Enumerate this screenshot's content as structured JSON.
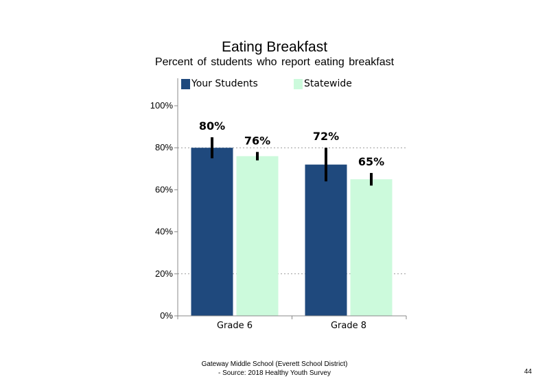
{
  "chart_data": {
    "type": "bar",
    "title": "Eating Breakfast",
    "subtitle": "Percent of students who report eating breakfast",
    "categories": [
      "Grade 6",
      "Grade 8"
    ],
    "series": [
      {
        "name": "Your Students",
        "color": "#1f497d",
        "values": [
          80,
          72
        ],
        "labels": [
          "80%",
          "72%"
        ],
        "error_low": [
          75,
          64
        ],
        "error_high": [
          85,
          80
        ]
      },
      {
        "name": "Statewide",
        "color": "#ccfadc",
        "values": [
          76,
          65
        ],
        "labels": [
          "76%",
          "65%"
        ],
        "error_low": [
          74,
          62
        ],
        "error_high": [
          78,
          68
        ]
      }
    ],
    "ylim": [
      0,
      100
    ],
    "yticks": [
      0,
      20,
      40,
      60,
      80,
      100
    ],
    "ytick_labels": [
      "0%",
      "20%",
      "40%",
      "60%",
      "80%",
      "100%"
    ],
    "gridlines": [
      20,
      80
    ],
    "legend_position": "top"
  },
  "footer": {
    "line1": "Gateway Middle School (Everett School District)",
    "line2": "- Source: 2018 Healthy  Youth Survey"
  },
  "page_number": "44"
}
